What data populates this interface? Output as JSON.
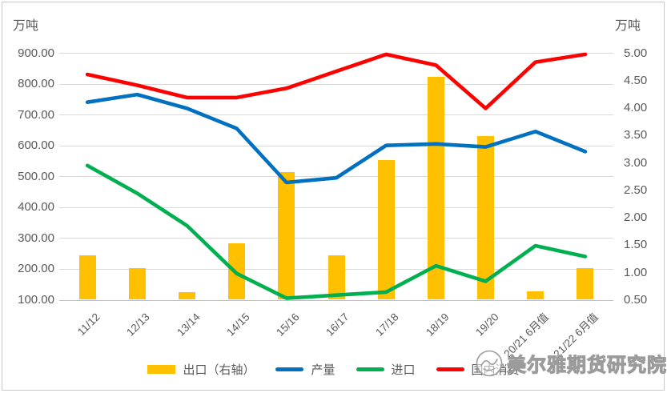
{
  "chart": {
    "left_axis_unit": "万吨",
    "right_axis_unit": "万吨"
  },
  "chart_data": {
    "type": "bar",
    "subtype": "combo bar+line, dual y-axis",
    "categories": [
      "11/12",
      "12/13",
      "13/14",
      "14/15",
      "15/16",
      "16/17",
      "17/18",
      "18/19",
      "19/20",
      "20/21 6月值",
      "21/22 6月值"
    ],
    "series": [
      {
        "name": "出口（右轴）",
        "type": "bar",
        "axis": "right",
        "color": "#FFC000",
        "values": [
          1.31,
          1.08,
          0.64,
          1.53,
          2.82,
          1.31,
          3.05,
          4.56,
          3.48,
          0.65,
          1.08
        ]
      },
      {
        "name": "产量",
        "type": "line",
        "axis": "left",
        "color": "#0070C0",
        "values": [
          740,
          765,
          720,
          655,
          480,
          495,
          600,
          605,
          595,
          645,
          580
        ]
      },
      {
        "name": "进口",
        "type": "line",
        "axis": "left",
        "color": "#00B050",
        "values": [
          535,
          445,
          340,
          185,
          105,
          115,
          125,
          210,
          160,
          275,
          240
        ]
      },
      {
        "name": "国内消费",
        "type": "line",
        "axis": "left",
        "color": "#FF0000",
        "values": [
          830,
          795,
          755,
          755,
          785,
          840,
          895,
          860,
          720,
          870,
          895
        ]
      }
    ],
    "left_axis": {
      "min": 100,
      "max": 900,
      "step": 100,
      "ticks": [
        "900.00",
        "800.00",
        "700.00",
        "600.00",
        "500.00",
        "400.00",
        "300.00",
        "200.00",
        "100.00"
      ]
    },
    "right_axis": {
      "min": 0.5,
      "max": 5.0,
      "step": 0.5,
      "ticks": [
        "5.00",
        "4.50",
        "4.00",
        "3.50",
        "3.00",
        "2.50",
        "2.00",
        "1.50",
        "1.00",
        "0.50"
      ]
    },
    "grid": true,
    "legend_position": "bottom",
    "xlabel": "",
    "ylabel_left": "万吨",
    "ylabel_right": "万吨"
  },
  "watermark": {
    "text": "美尔雅期货研究院"
  },
  "colors": {
    "bar": "#FFC000",
    "line_production": "#0070C0",
    "line_import": "#00B050",
    "line_consumption": "#FF0000",
    "axis_text": "#595959",
    "gridline": "#d9d9d9"
  }
}
